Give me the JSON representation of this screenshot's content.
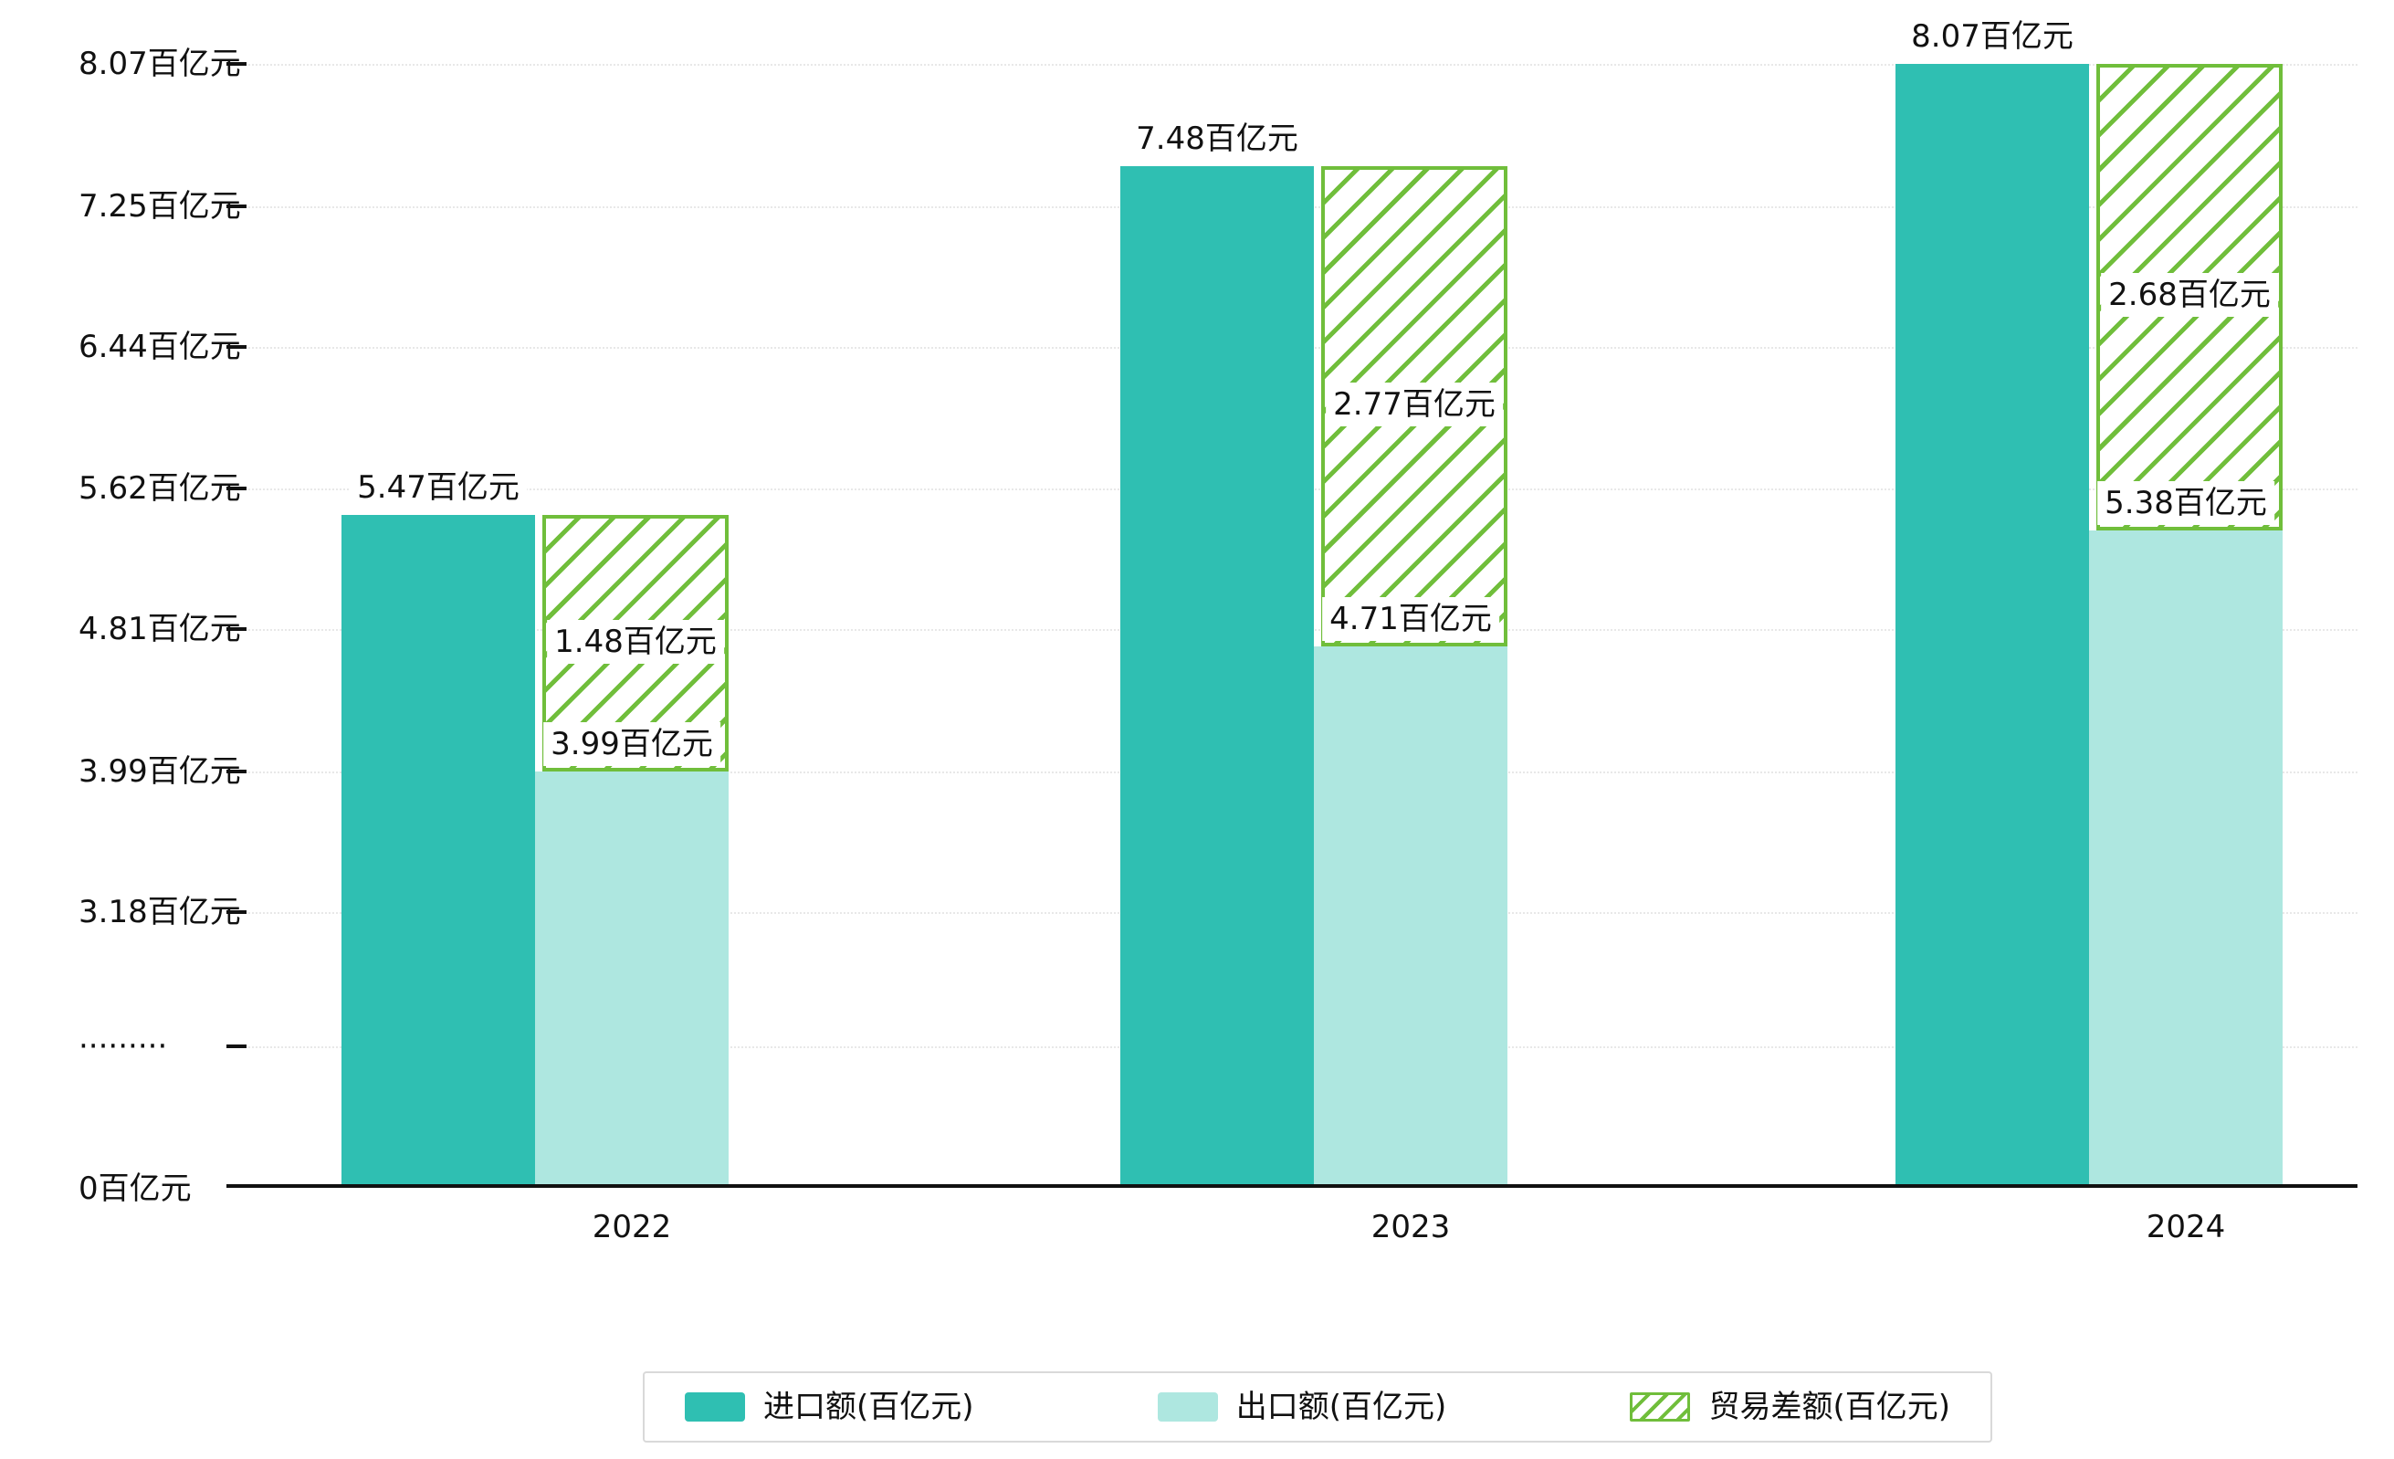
{
  "chart_data": {
    "type": "bar",
    "title": "",
    "categories": [
      "2022",
      "2023",
      "2024"
    ],
    "unit_suffix": "百亿元",
    "series": [
      {
        "key": "import",
        "name": "进口额(百亿元)",
        "values": [
          5.47,
          7.48,
          8.07
        ],
        "color": "#2FBFB2",
        "style": "solid"
      },
      {
        "key": "export",
        "name": "出口额(百亿元)",
        "values": [
          3.99,
          4.71,
          5.38
        ],
        "color": "#AEE7E0",
        "style": "solid"
      },
      {
        "key": "trade_gap",
        "name": "贸易差额(百亿元)",
        "values": [
          1.48,
          2.77,
          2.68
        ],
        "color": "#70BE3B",
        "style": "hatched",
        "render": "stacked-on-export"
      }
    ],
    "bar_labels": {
      "import": [
        "5.47百亿元",
        "7.48百亿元",
        "8.07百亿元"
      ],
      "export": [
        "3.99百亿元",
        "4.71百亿元",
        "5.38百亿元"
      ],
      "trade_gap": [
        "1.48百亿元",
        "2.77百亿元",
        "2.68百亿元"
      ]
    },
    "y_axis": {
      "axis_break": true,
      "ticks": [
        {
          "label": "8.07百亿元",
          "value": 8.07
        },
        {
          "label": "7.25百亿元",
          "value": 7.25
        },
        {
          "label": "6.44百亿元",
          "value": 6.44
        },
        {
          "label": "5.62百亿元",
          "value": 5.62
        },
        {
          "label": "4.81百亿元",
          "value": 4.81
        },
        {
          "label": "3.99百亿元",
          "value": 3.99
        },
        {
          "label": "3.18百亿元",
          "value": 3.18
        },
        {
          "label": "·········",
          "type": "break"
        },
        {
          "label": "0百亿元",
          "value": 0,
          "type": "zero"
        }
      ]
    },
    "x_axis": {
      "labels": [
        "2022",
        "2023",
        "2024"
      ]
    },
    "legend": {
      "position": "bottom-center",
      "items": [
        {
          "key": "import",
          "label": "进口额(百亿元)",
          "swatch": "solid-teal"
        },
        {
          "key": "export",
          "label": "出口额(百亿元)",
          "swatch": "solid-light-teal"
        },
        {
          "key": "trade_gap",
          "label": "贸易差额(百亿元)",
          "swatch": "hatched-green"
        }
      ]
    },
    "grid": true,
    "colors": {
      "import": "#2FBFB2",
      "export": "#AEE7E0",
      "trade_gap_hatch": "#70BE3B",
      "axis": "#111111",
      "gridline": "#e8e8e8",
      "label_text": "#111111",
      "background": "#ffffff"
    }
  }
}
